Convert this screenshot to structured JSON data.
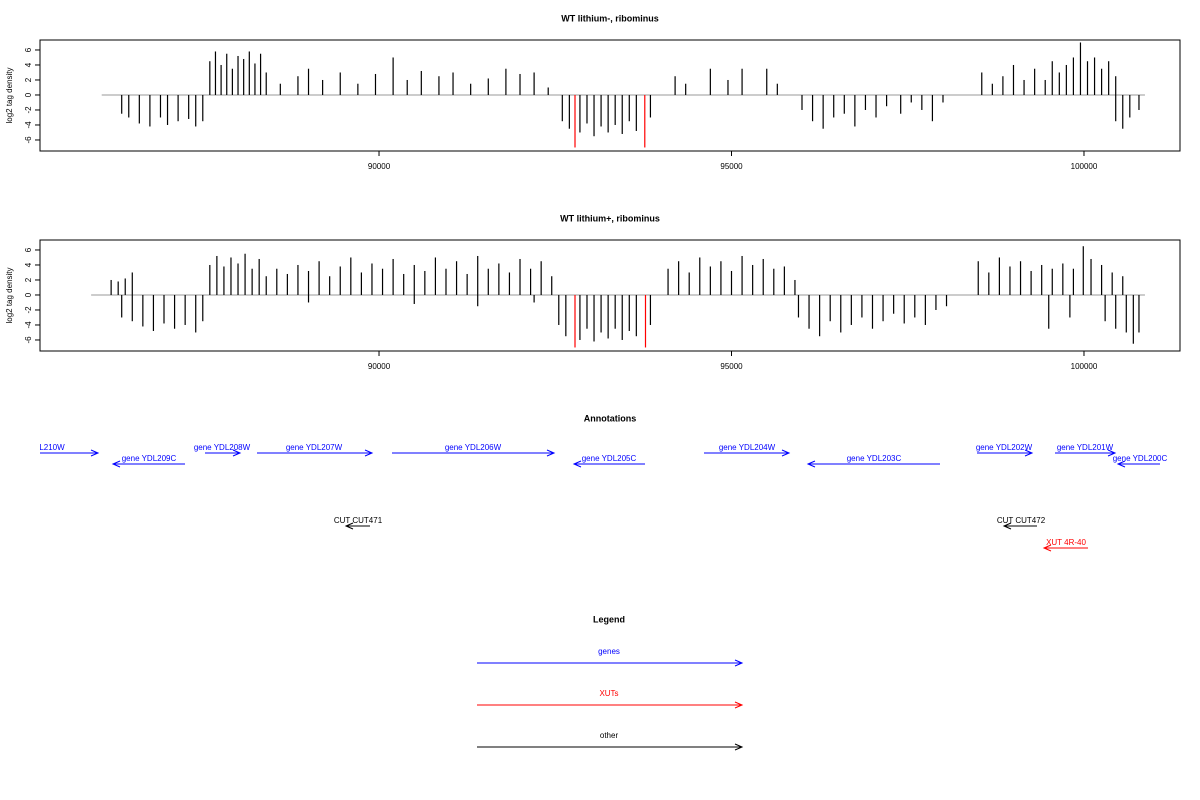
{
  "chart_data": [
    {
      "type": "bar",
      "title": "WT lithium-, ribominus",
      "ylabel": "log2 tag density",
      "xlim": [
        85191,
        101362
      ],
      "ylim": [
        -7.47,
        7.33
      ],
      "xticks": [
        90000,
        95000,
        100000
      ],
      "yticks": [
        -6,
        -4,
        -2,
        0,
        2,
        4,
        6
      ],
      "baseline_color": "#999999",
      "series": [
        {
          "color": "#000000",
          "x": [
            86350,
            86450,
            86600,
            86750,
            86900,
            87000,
            87150,
            87300,
            87400,
            87500,
            87600,
            87680,
            87760,
            87840,
            87920,
            88000,
            88080,
            88160,
            88240,
            88320,
            88400,
            88600,
            88850,
            89000,
            89200,
            89450,
            89700,
            89950,
            90200,
            90400,
            90600,
            90850,
            91050,
            91300,
            91550,
            91800,
            92000,
            92200,
            92400,
            92600,
            92700,
            92850,
            92950,
            93050,
            93150,
            93250,
            93350,
            93450,
            93550,
            93650,
            93850,
            94200,
            94350,
            94700,
            94950,
            95150,
            95500,
            95650,
            96000,
            96150,
            96300,
            96450,
            96600,
            96750,
            96900,
            97050,
            97200,
            97400,
            97550,
            97700,
            97850,
            98000,
            98550,
            98700,
            98850,
            99000,
            99150,
            99300,
            99450,
            99550,
            99650,
            99750,
            99850,
            99950,
            100050,
            100150,
            100250,
            100350,
            100450,
            100450,
            100550,
            100650,
            100780
          ],
          "values": [
            -2.5,
            -3,
            -3.8,
            -4.2,
            -3,
            -4,
            -3.5,
            -3.2,
            -4.2,
            -3.5,
            4.5,
            5.8,
            4,
            5.5,
            3.5,
            5.2,
            4.8,
            5.8,
            4.2,
            5.5,
            3,
            1.5,
            2.5,
            3.5,
            2,
            3,
            1.5,
            2.8,
            5,
            2,
            3.2,
            2.5,
            3,
            1.5,
            2.2,
            3.5,
            2.8,
            3,
            1,
            -3.5,
            -4.5,
            -5,
            -3.8,
            -5.5,
            -4.2,
            -5,
            -4,
            -5.2,
            -3.5,
            -4.8,
            -3,
            2.5,
            1.5,
            3.5,
            2,
            3.5,
            3.5,
            1.5,
            -2,
            -3.5,
            -4.5,
            -3,
            -2.5,
            -4.2,
            -2,
            -3,
            -1.5,
            -2.5,
            -1,
            -2,
            -3.5,
            -1,
            3,
            1.5,
            2.5,
            4,
            2,
            3.5,
            2,
            4.5,
            3,
            4,
            5,
            7,
            4.5,
            5,
            3.5,
            4.5,
            2.5,
            -3.5,
            -4.5,
            -3,
            -2
          ]
        },
        {
          "color": "#ff0000",
          "x": [
            92780,
            93770
          ],
          "values": [
            -7,
            -7
          ]
        }
      ]
    },
    {
      "type": "bar",
      "title": "WT lithium+, ribominus",
      "ylabel": "log2 tag density",
      "xlim": [
        85191,
        101362
      ],
      "ylim": [
        -7.47,
        7.33
      ],
      "xticks": [
        90000,
        95000,
        100000
      ],
      "yticks": [
        -6,
        -4,
        -2,
        0,
        2,
        4,
        6
      ],
      "baseline_color": "#999999",
      "series": [
        {
          "color": "#000000",
          "x": [
            86200,
            86300,
            86400,
            86500,
            86350,
            86500,
            86650,
            86800,
            86950,
            87100,
            87250,
            87400,
            87500,
            87600,
            87700,
            87800,
            87900,
            88000,
            88100,
            88200,
            88300,
            88400,
            88550,
            88700,
            88850,
            89000,
            89150,
            89300,
            89450,
            89600,
            89750,
            89900,
            90050,
            90200,
            90350,
            90500,
            90650,
            90800,
            90950,
            91100,
            91250,
            91400,
            91550,
            91700,
            91850,
            92000,
            92150,
            92300,
            92450,
            89000,
            90500,
            91400,
            92200,
            92550,
            92650,
            92850,
            92950,
            93050,
            93150,
            93250,
            93350,
            93450,
            93550,
            93650,
            93850,
            94100,
            94250,
            94400,
            94550,
            94700,
            94850,
            95000,
            95150,
            95300,
            95450,
            95600,
            95750,
            95900,
            95950,
            96100,
            96250,
            96400,
            96550,
            96700,
            96850,
            97000,
            97150,
            97300,
            97450,
            97600,
            97750,
            97900,
            98050,
            98500,
            98650,
            98800,
            98950,
            99100,
            99250,
            99400,
            99550,
            99700,
            99850,
            99990,
            100100,
            100250,
            100400,
            100550,
            99500,
            99800,
            100300,
            100450,
            100600,
            100700,
            100780
          ],
          "values": [
            2,
            1.8,
            2.2,
            3,
            -3,
            -3.5,
            -4.2,
            -4.8,
            -3.8,
            -4.5,
            -4,
            -5,
            -3.5,
            4,
            5.2,
            3.8,
            5,
            4.2,
            5.5,
            3.5,
            4.8,
            2.5,
            3.5,
            2.8,
            4,
            3.2,
            4.5,
            2.5,
            3.8,
            5,
            3,
            4.2,
            3.5,
            4.8,
            2.8,
            4,
            3.2,
            5,
            3.5,
            4.5,
            2.8,
            5.2,
            3.5,
            4.2,
            3,
            4.8,
            3.5,
            4.5,
            2.5,
            -1,
            -1.2,
            -1.5,
            -1,
            -4,
            -5.5,
            -6,
            -4.5,
            -6.2,
            -5,
            -5.8,
            -4.5,
            -6,
            -4.8,
            -5.5,
            -4,
            3.5,
            4.5,
            3,
            5,
            3.8,
            4.5,
            3.2,
            5.2,
            4,
            4.8,
            3.5,
            3.8,
            2,
            -3,
            -4.5,
            -5.5,
            -3.5,
            -5,
            -4,
            -3,
            -4.5,
            -3.5,
            -2.5,
            -3.8,
            -3,
            -4,
            -2,
            -1.5,
            4.5,
            3,
            5,
            3.8,
            4.5,
            3.2,
            4,
            3.5,
            4.2,
            3.5,
            6.5,
            4.8,
            4,
            3,
            2.5,
            -4.5,
            -3,
            -3.5,
            -4.5,
            -5,
            -6.5,
            -5
          ]
        },
        {
          "color": "#ff0000",
          "x": [
            92780,
            93780
          ],
          "values": [
            -7,
            -7
          ]
        }
      ]
    }
  ],
  "annotations": {
    "title": "Annotations",
    "features": [
      {
        "label": "L210W",
        "color": "#0000ff"
      },
      {
        "label": "gene YDL209C",
        "color": "#0000ff"
      },
      {
        "label": "gene YDL208W",
        "color": "#0000ff"
      },
      {
        "label": "gene YDL207W",
        "color": "#0000ff"
      },
      {
        "label": "gene YDL206W",
        "color": "#0000ff"
      },
      {
        "label": "gene YDL205C",
        "color": "#0000ff"
      },
      {
        "label": "gene YDL204W",
        "color": "#0000ff"
      },
      {
        "label": "gene YDL203C",
        "color": "#0000ff"
      },
      {
        "label": "gene YDL202W",
        "color": "#0000ff"
      },
      {
        "label": "gene YDL201W",
        "color": "#0000ff"
      },
      {
        "label": "gene YDL200C",
        "color": "#0000ff"
      },
      {
        "label": "CUT CUT471",
        "color": "#000000"
      },
      {
        "label": "CUT CUT472",
        "color": "#000000"
      },
      {
        "label": "XUT 4R-40",
        "color": "#ff0000"
      }
    ]
  },
  "legend": {
    "title": "Legend",
    "entries": [
      {
        "label": "genes",
        "color": "#0000ff"
      },
      {
        "label": "XUTs",
        "color": "#ff0000"
      },
      {
        "label": "other",
        "color": "#000000"
      }
    ]
  }
}
